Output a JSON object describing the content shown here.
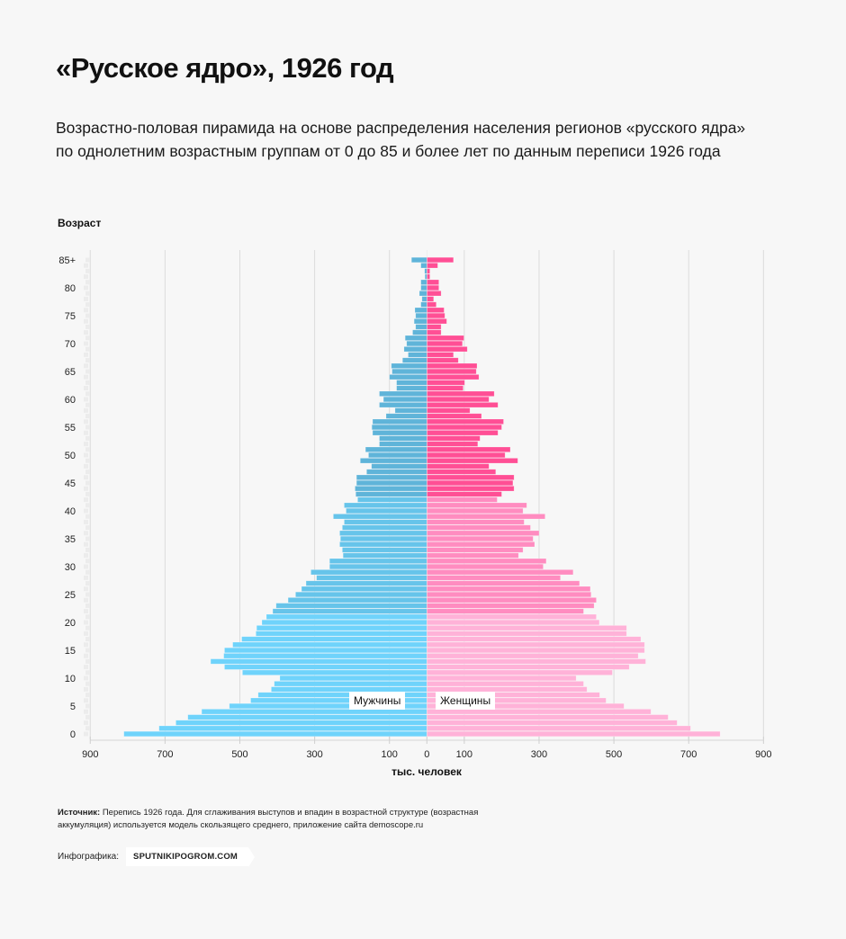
{
  "header": {
    "title": "«Русское ядро», 1926 год",
    "subtitle": "Возрастно-половая пирамида на основе распределения населения регионов «русского ядра» по однолетним возрастным группам от 0 до 85 и более лет по данным переписи 1926 года"
  },
  "axes": {
    "y_title": "Возраст",
    "x_title": "тыс. человек",
    "y_ticks": [
      "0",
      "5",
      "10",
      "15",
      "20",
      "25",
      "30",
      "35",
      "40",
      "45",
      "50",
      "55",
      "60",
      "65",
      "70",
      "75",
      "80",
      "85+"
    ],
    "x_ticks_left": [
      "900",
      "700",
      "500",
      "300",
      "100"
    ],
    "x_ticks_right": [
      "0",
      "100",
      "300",
      "500",
      "700",
      "900"
    ]
  },
  "legend": {
    "male": "Мужчины",
    "female": "Женщины"
  },
  "colors": {
    "male_top": "#5fb4d9",
    "male_bottom": "#6fd3fb",
    "female_top": "#ff4f95",
    "female_bottom": "#ffb8dc",
    "grid": "#d9d9d9",
    "background": "#f7f7f7"
  },
  "footer": {
    "source_label": "Источник:",
    "source_text": " Перепись 1926 года. Для сглаживания выступов и впадин в возрастной структуре (возрастная аккумуляция) используется модель скользящего среднего, приложение сайта demoscope.ru",
    "credit_label": "Инфографика:",
    "credit_badge": "SPUTNIKIPOGROM.COM"
  },
  "chart_data": {
    "type": "bar",
    "orientation": "horizontal",
    "subtype": "population-pyramid",
    "title": "«Русское ядро», 1926 год",
    "xlabel": "тыс. человек",
    "ylabel": "Возраст",
    "xlim": [
      -900,
      900
    ],
    "categories": [
      "0",
      "1",
      "2",
      "3",
      "4",
      "5",
      "6",
      "7",
      "8",
      "9",
      "10",
      "11",
      "12",
      "13",
      "14",
      "15",
      "16",
      "17",
      "18",
      "19",
      "20",
      "21",
      "22",
      "23",
      "24",
      "25",
      "26",
      "27",
      "28",
      "29",
      "30",
      "31",
      "32",
      "33",
      "34",
      "35",
      "36",
      "37",
      "38",
      "39",
      "40",
      "41",
      "42",
      "43",
      "44",
      "45",
      "46",
      "47",
      "48",
      "49",
      "50",
      "51",
      "52",
      "53",
      "54",
      "55",
      "56",
      "57",
      "58",
      "59",
      "60",
      "61",
      "62",
      "63",
      "64",
      "65",
      "66",
      "67",
      "68",
      "69",
      "70",
      "71",
      "72",
      "73",
      "74",
      "75",
      "76",
      "77",
      "78",
      "79",
      "80",
      "81",
      "82",
      "83",
      "84",
      "85+"
    ],
    "series": [
      {
        "name": "Мужчины",
        "values": [
          810,
          716,
          671,
          639,
          602,
          528,
          471,
          451,
          416,
          408,
          393,
          493,
          541,
          578,
          543,
          541,
          519,
          495,
          457,
          455,
          441,
          429,
          412,
          403,
          371,
          351,
          335,
          323,
          295,
          310,
          260,
          260,
          224,
          226,
          233,
          231,
          233,
          226,
          221,
          250,
          216,
          221,
          185,
          190,
          192,
          188,
          188,
          161,
          148,
          178,
          156,
          164,
          127,
          127,
          145,
          147,
          145,
          109,
          85,
          127,
          116,
          127,
          81,
          81,
          100,
          93,
          95,
          65,
          50,
          61,
          54,
          58,
          38,
          30,
          34,
          30,
          32,
          16,
          13,
          20,
          16,
          16,
          5,
          6,
          16,
          41
        ]
      },
      {
        "name": "Женщины",
        "values": [
          784,
          705,
          669,
          645,
          599,
          527,
          479,
          462,
          428,
          419,
          399,
          496,
          541,
          585,
          565,
          582,
          582,
          572,
          534,
          534,
          461,
          453,
          419,
          447,
          453,
          439,
          437,
          408,
          357,
          391,
          311,
          319,
          245,
          257,
          288,
          284,
          300,
          277,
          260,
          316,
          257,
          267,
          188,
          200,
          233,
          230,
          233,
          184,
          166,
          243,
          209,
          223,
          136,
          142,
          190,
          200,
          205,
          146,
          115,
          190,
          166,
          180,
          97,
          101,
          139,
          132,
          134,
          84,
          71,
          108,
          95,
          99,
          38,
          38,
          53,
          48,
          46,
          25,
          18,
          38,
          32,
          32,
          8,
          8,
          29,
          71
        ]
      }
    ]
  }
}
